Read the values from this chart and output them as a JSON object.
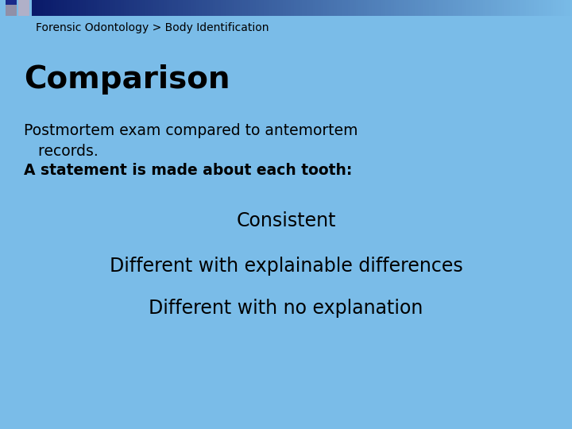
{
  "background_color": "#7abce8",
  "header_bar_left_color": "#0a1a6a",
  "header_bar_right_color": "#7abce8",
  "header_text": "Forensic Odontology > Body Identification",
  "header_text_color": "#000000",
  "header_text_size": 10,
  "title_text": "Comparison",
  "title_text_color": "#000000",
  "title_text_size": 28,
  "body_line1": "Postmortem exam compared to antemortem",
  "body_line2": "   records.",
  "body_line3": "A statement is made about each tooth:",
  "body_text_color": "#000000",
  "body_text_size": 13.5,
  "bullet1": "Consistent",
  "bullet2": "Different with explainable differences",
  "bullet3": "Different with no explanation",
  "bullet_text_size": 17,
  "bullet_text_color": "#000000",
  "sq1_color": "#1a2a8a",
  "sq2_color": "#aaaacc",
  "sq3_color": "#888898",
  "sq4_color": "#aaaacc"
}
